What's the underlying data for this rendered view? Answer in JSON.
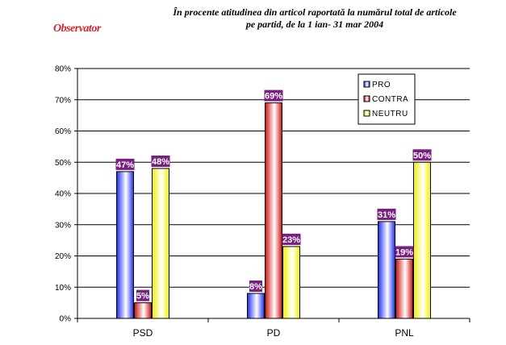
{
  "logo_text": "Observator",
  "title_line1": "În procente atitudinea din articol raportată la numărul total de articole",
  "title_line2": "pe partid, de la 1 ian- 31 mar 2004",
  "colors": {
    "pro": "#1a2cf0",
    "contra": "#d11010",
    "neutru": "#f2f000",
    "label_bg": "#7a1f82"
  },
  "chart_data": {
    "type": "bar",
    "categories": [
      "PSD",
      "PD",
      "PNL"
    ],
    "series": [
      {
        "name": "PRO",
        "values": [
          47,
          8,
          31
        ],
        "labels": [
          "47%",
          "8%",
          "31%"
        ]
      },
      {
        "name": "CONTRA",
        "values": [
          5,
          69,
          19
        ],
        "labels": [
          "5%",
          "69%",
          "19%"
        ]
      },
      {
        "name": "NEUTRU",
        "values": [
          48,
          23,
          50
        ],
        "labels": [
          "48%",
          "23%",
          "50%"
        ]
      }
    ],
    "ylim": [
      0,
      80
    ],
    "yticks": [
      "0%",
      "10%",
      "20%",
      "30%",
      "40%",
      "50%",
      "60%",
      "70%",
      "80%"
    ],
    "grid": true,
    "legend_position": "top-right",
    "title": "În procente atitudinea din articol raportată la numărul total de articole pe partid, de la 1 ian- 31 mar 2004",
    "xlabel": "",
    "ylabel": ""
  }
}
